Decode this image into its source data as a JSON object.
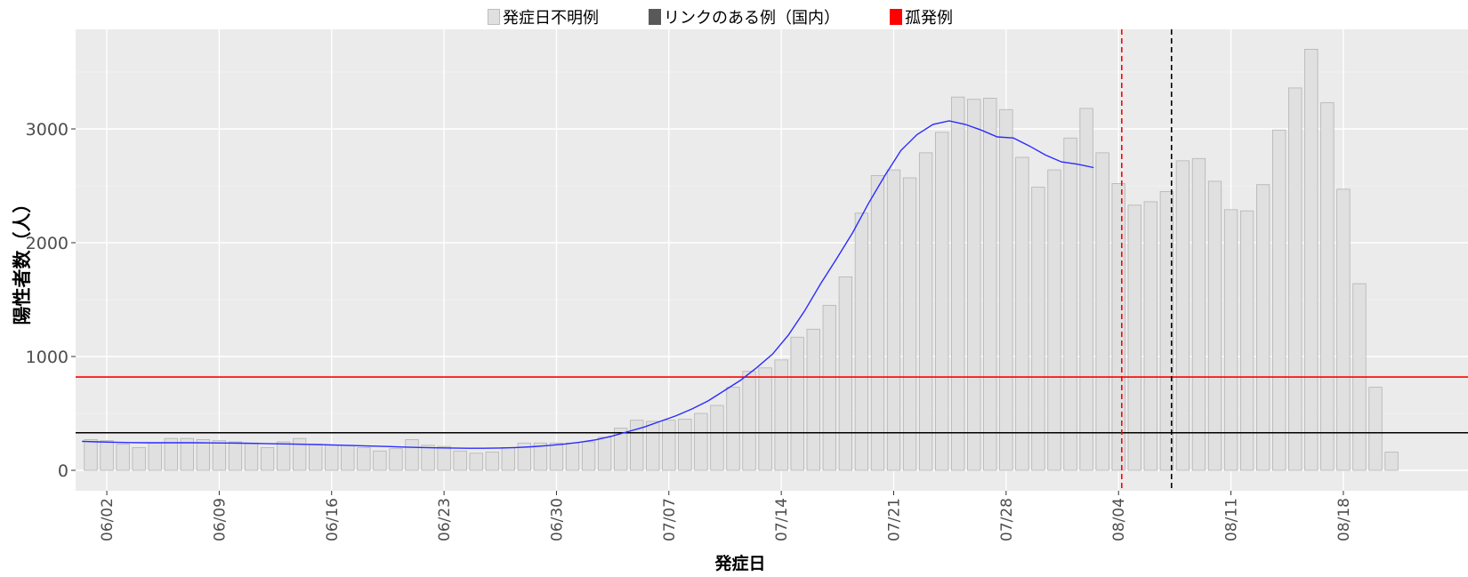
{
  "chart_data": {
    "type": "bar",
    "title": "",
    "xlabel": "発症日",
    "ylabel": "陽性者数（人）",
    "ylim": [
      0,
      3900
    ],
    "yticks": [
      0,
      1000,
      2000,
      3000
    ],
    "grid": true,
    "legend_placement": "top",
    "legend": [
      {
        "name": "発症日不明例",
        "color": "#e0e0e0"
      },
      {
        "name": "リンクのある例（国内）",
        "color": "#595959"
      },
      {
        "name": "孤発例",
        "color": "#ff0000"
      }
    ],
    "start_date": "06/01",
    "xtick_labels": [
      "06/02",
      "06/09",
      "06/16",
      "06/23",
      "06/30",
      "07/07",
      "07/14",
      "07/21",
      "07/28",
      "08/04",
      "08/11",
      "08/18"
    ],
    "xtick_indices": [
      1,
      8,
      15,
      22,
      29,
      36,
      43,
      50,
      57,
      64,
      71,
      78
    ],
    "values": [
      270,
      260,
      230,
      200,
      240,
      280,
      280,
      270,
      260,
      250,
      240,
      200,
      250,
      280,
      230,
      220,
      220,
      200,
      170,
      190,
      270,
      220,
      210,
      170,
      150,
      160,
      200,
      240,
      240,
      240,
      240,
      250,
      290,
      370,
      440,
      430,
      440,
      450,
      500,
      570,
      730,
      870,
      900,
      970,
      1170,
      1240,
      1450,
      1700,
      2260,
      2590,
      2640,
      2570,
      2790,
      2970,
      3280,
      3260,
      3270,
      3170,
      2750,
      2490,
      2640,
      2920,
      3180,
      2790,
      2520,
      2330,
      2360,
      2450,
      2720,
      2740,
      2540,
      2290,
      2280,
      2510,
      2990,
      3360,
      3700,
      3230,
      2470,
      1640,
      730,
      160
    ],
    "trend_line": {
      "color": "#2b2bff",
      "start_index": 0,
      "values": [
        255,
        250,
        247,
        244,
        242,
        242,
        242,
        242,
        241,
        240,
        238,
        236,
        233,
        231,
        228,
        225,
        221,
        217,
        213,
        209,
        205,
        201,
        198,
        196,
        194,
        194,
        196,
        200,
        207,
        217,
        230,
        247,
        268,
        300,
        340,
        380,
        430,
        480,
        540,
        610,
        700,
        790,
        900,
        1020,
        1190,
        1400,
        1640,
        1860,
        2090,
        2350,
        2590,
        2810,
        2950,
        3040,
        3070,
        3040,
        2990,
        2930,
        2920,
        2850,
        2770,
        2710,
        2690,
        2660
      ]
    },
    "reference_lines": [
      {
        "axis": "y",
        "value": 820,
        "color": "#ff0000",
        "style": "solid"
      },
      {
        "axis": "y",
        "value": 330,
        "color": "#000000",
        "style": "solid"
      },
      {
        "axis": "x",
        "index": 64.2,
        "color": "#ff0000",
        "style": "dashed"
      },
      {
        "axis": "x",
        "index": 67.3,
        "color": "#000000",
        "style": "dashed"
      }
    ]
  }
}
